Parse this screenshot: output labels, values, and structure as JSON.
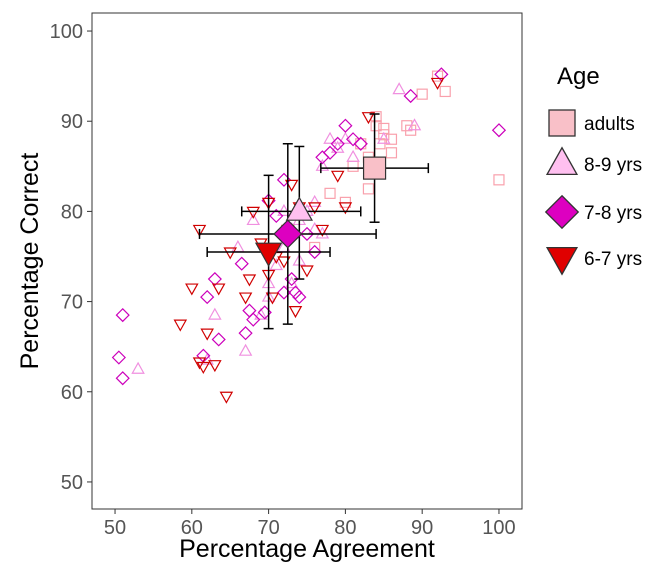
{
  "chart_data": {
    "type": "scatter",
    "xlabel": "Percentage Agreement",
    "ylabel": "Percentage Correct",
    "xlim": [
      47,
      103
    ],
    "ylim": [
      47,
      102
    ],
    "xticks": [
      50,
      60,
      70,
      80,
      90,
      100
    ],
    "yticks": [
      50,
      60,
      70,
      80,
      90,
      100
    ],
    "grid": false,
    "legend": {
      "title": "Age",
      "position": "right"
    },
    "series": [
      {
        "name": "adults",
        "marker": "square",
        "color": "#f9c0c8",
        "stroke": "#f9a0ac",
        "points": [
          [
            84,
            89.5
          ],
          [
            85,
            88.5
          ],
          [
            84.5,
            87.5
          ],
          [
            86,
            88
          ],
          [
            82,
            87.5
          ],
          [
            83,
            86
          ],
          [
            84,
            90.5
          ],
          [
            85,
            89.2
          ],
          [
            88,
            89.5
          ],
          [
            90,
            93
          ],
          [
            93,
            93.3
          ],
          [
            92,
            95
          ],
          [
            100,
            83.5
          ],
          [
            83,
            82.5
          ],
          [
            80,
            81
          ],
          [
            81,
            85
          ],
          [
            86,
            86.5
          ],
          [
            78,
            82
          ],
          [
            88.5,
            89
          ],
          [
            76,
            76
          ]
        ],
        "mean": {
          "x": 83.8,
          "y": 84.8,
          "x_err": [
            76.8,
            90.8
          ],
          "y_err": [
            78.8,
            90.8
          ]
        }
      },
      {
        "name": "8-9 yrs",
        "marker": "triangle-up",
        "color": "#ffc0f0",
        "stroke": "#f090e0",
        "points": [
          [
            53,
            62.5
          ],
          [
            62,
            63.5
          ],
          [
            63,
            68.5
          ],
          [
            67,
            64.5
          ],
          [
            69,
            68.5
          ],
          [
            70,
            72
          ],
          [
            71,
            74
          ],
          [
            72,
            76
          ],
          [
            73,
            78
          ],
          [
            74,
            79
          ],
          [
            75,
            80
          ],
          [
            76,
            81
          ],
          [
            77,
            85
          ],
          [
            78,
            88
          ],
          [
            79,
            87
          ],
          [
            80,
            88
          ],
          [
            81,
            86
          ],
          [
            85,
            88
          ],
          [
            87,
            93.5
          ],
          [
            89,
            89.5
          ],
          [
            72,
            80
          ],
          [
            68,
            79
          ],
          [
            66,
            76
          ],
          [
            74,
            74.5
          ],
          [
            77,
            77.5
          ],
          [
            70,
            70.5
          ],
          [
            73,
            72
          ],
          [
            76,
            78
          ]
        ],
        "mean": {
          "x": 74,
          "y": 80,
          "x_err": [
            66.5,
            82
          ],
          "y_err": [
            72.5,
            87.2
          ]
        }
      },
      {
        "name": "7-8 yrs",
        "marker": "diamond",
        "color": "#dd00c0",
        "stroke": "#cc00bb",
        "points": [
          [
            50.5,
            63.8
          ],
          [
            51,
            61.5
          ],
          [
            51,
            68.5
          ],
          [
            61.5,
            64
          ],
          [
            62,
            70.5
          ],
          [
            63,
            72.5
          ],
          [
            63.5,
            65.8
          ],
          [
            66.5,
            74.2
          ],
          [
            67,
            66.5
          ],
          [
            67.5,
            69
          ],
          [
            68,
            68
          ],
          [
            69.5,
            68.8
          ],
          [
            70,
            81.2
          ],
          [
            71,
            79.5
          ],
          [
            72,
            83.5
          ],
          [
            73,
            72.5
          ],
          [
            73.5,
            71
          ],
          [
            74,
            70.5
          ],
          [
            76,
            75.5
          ],
          [
            77,
            86
          ],
          [
            78,
            86.5
          ],
          [
            79,
            87.5
          ],
          [
            80,
            89.5
          ],
          [
            81,
            88
          ],
          [
            82,
            87.5
          ],
          [
            88.5,
            92.8
          ],
          [
            92.5,
            95.2
          ],
          [
            100,
            89
          ],
          [
            75,
            77.5
          ],
          [
            72,
            71
          ]
        ],
        "mean": {
          "x": 72.5,
          "y": 77.5,
          "x_err": [
            61,
            84
          ],
          "y_err": [
            67.5,
            87.5
          ]
        }
      },
      {
        "name": "6-7 yrs",
        "marker": "triangle-down",
        "color": "#e00000",
        "stroke": "#d00000",
        "points": [
          [
            58.5,
            67.5
          ],
          [
            60,
            71.5
          ],
          [
            61,
            78
          ],
          [
            61,
            63.3
          ],
          [
            61.5,
            62.8
          ],
          [
            62,
            66.5
          ],
          [
            63,
            63
          ],
          [
            63.5,
            71.5
          ],
          [
            64.5,
            59.5
          ],
          [
            65,
            75.5
          ],
          [
            67,
            70.5
          ],
          [
            67.5,
            72.5
          ],
          [
            68,
            80
          ],
          [
            69,
            76.5
          ],
          [
            70,
            81
          ],
          [
            70.5,
            70.5
          ],
          [
            71,
            75
          ],
          [
            72.5,
            78
          ],
          [
            73,
            83
          ],
          [
            73.5,
            69
          ],
          [
            74,
            80.5
          ],
          [
            75,
            73.5
          ],
          [
            76,
            80.5
          ],
          [
            77,
            78
          ],
          [
            79,
            84
          ],
          [
            80,
            80.5
          ],
          [
            83,
            90.5
          ],
          [
            92,
            94.3
          ],
          [
            72,
            74.5
          ],
          [
            70,
            73
          ]
        ],
        "mean": {
          "x": 70,
          "y": 75.5,
          "x_err": [
            62,
            78
          ],
          "y_err": [
            67,
            84
          ]
        }
      }
    ]
  }
}
